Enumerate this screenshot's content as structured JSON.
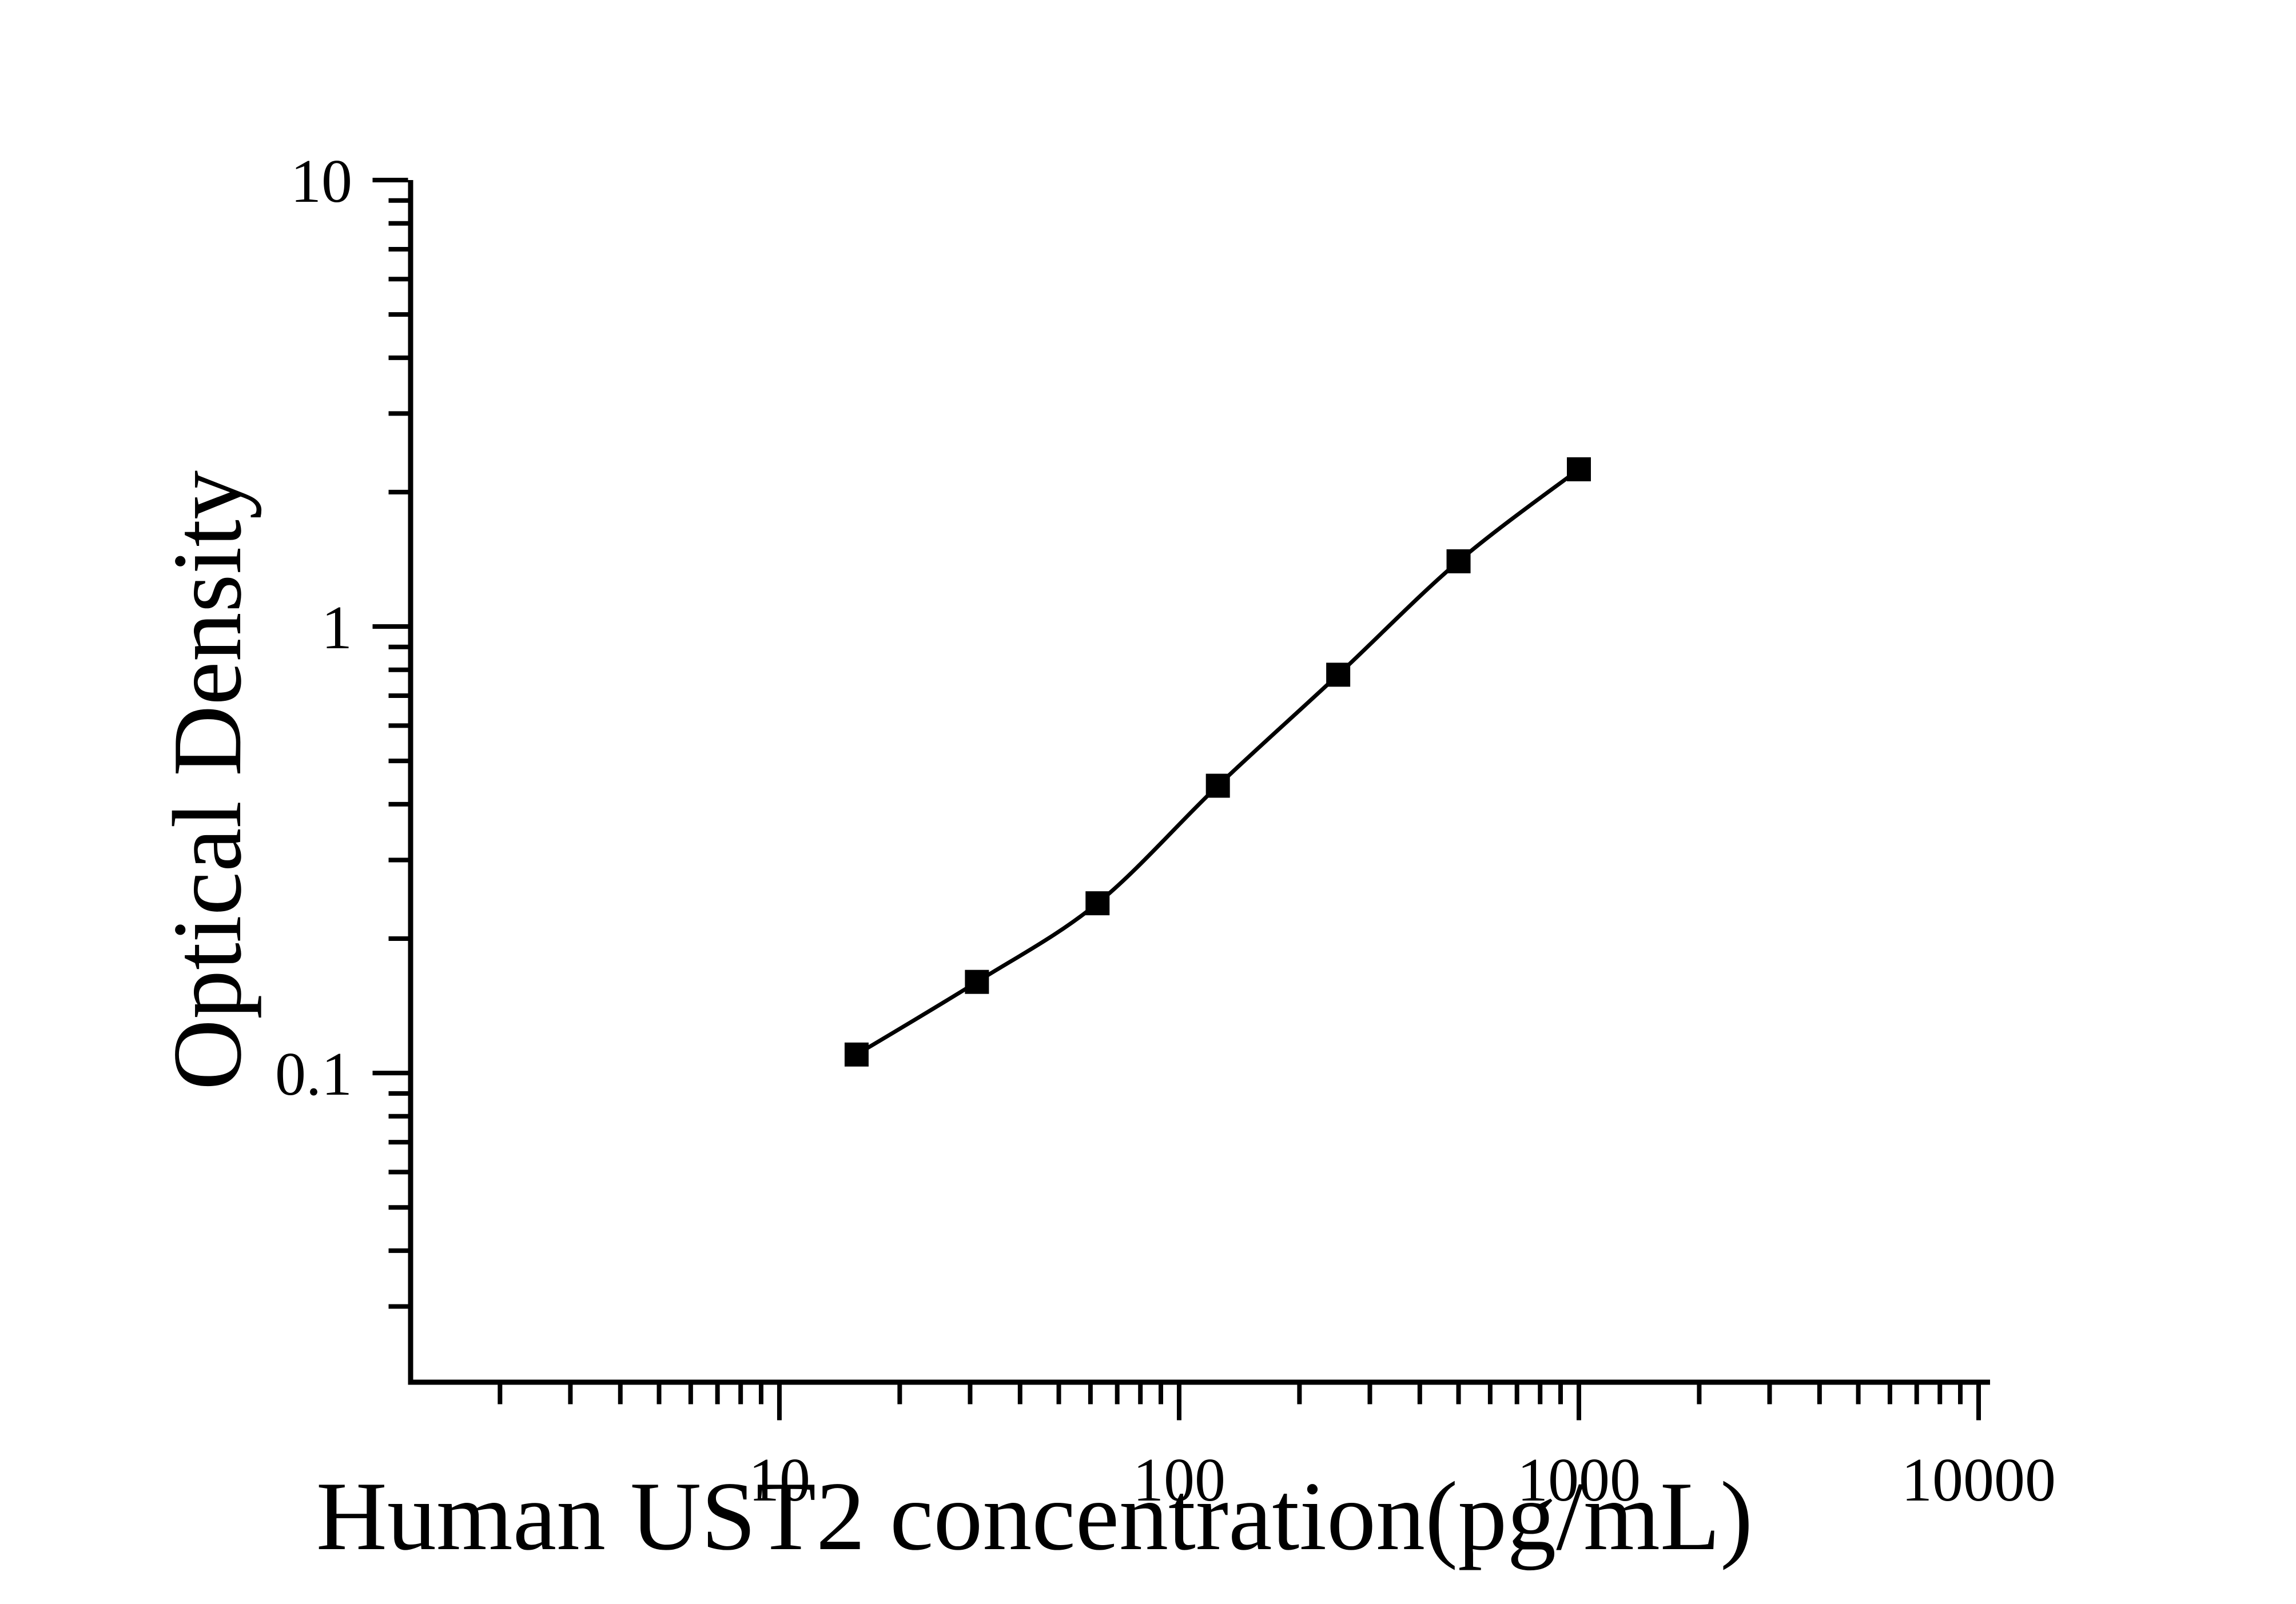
{
  "page": {
    "background": "#ffffff",
    "foreground": "#000000"
  },
  "chart_data": {
    "type": "line",
    "subtype": "elisa-standard-curve-scatter-line",
    "title": "",
    "xlabel": "Human UST2 concentration(pg/mL)",
    "ylabel": "Optical Density",
    "x_scale": "log",
    "y_scale": "log",
    "x": [
      15.6,
      31.2,
      62.5,
      125,
      250,
      500,
      1000
    ],
    "y": [
      0.11,
      0.16,
      0.24,
      0.44,
      0.78,
      1.4,
      2.25
    ],
    "series": [
      {
        "name": "standard-curve",
        "marker": "filled-square",
        "line": "smooth-thin"
      }
    ],
    "x_ticks": [
      10,
      100,
      1000,
      10000
    ],
    "x_tick_labels": [
      "10",
      "100",
      "1000",
      "10000"
    ],
    "y_ticks": [
      10,
      1,
      0.1
    ],
    "y_tick_labels": [
      "10",
      "1",
      "0.1"
    ],
    "x_range": [
      1.195,
      10681
    ],
    "y_range": [
      0.0203,
      10
    ],
    "minor_ticks": "log-2-to-9",
    "tick_direction": "out",
    "grid": "off",
    "legend": "none",
    "line_color": "#000000",
    "marker_color": "#000000",
    "background": "#ffffff"
  }
}
